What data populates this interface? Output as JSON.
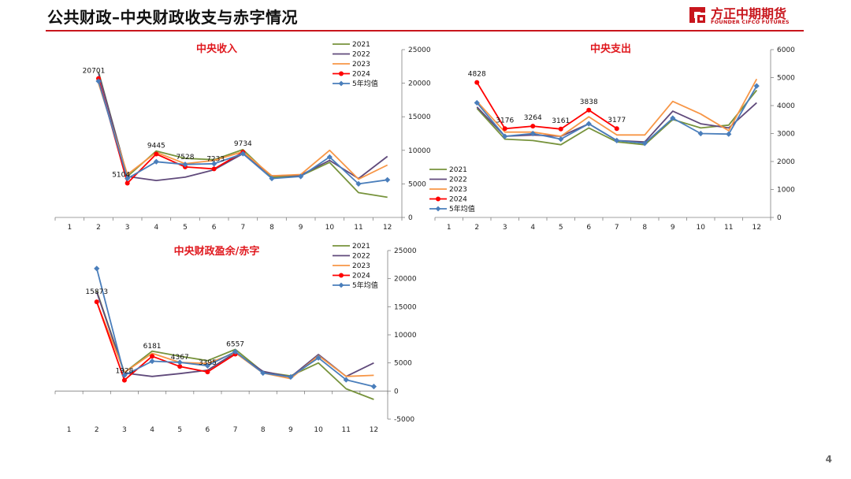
{
  "page": {
    "title": "公共财政–中央财政收支与赤字情况",
    "page_number": "4"
  },
  "logo": {
    "cn": "方正中期期货",
    "en": "FOUNDER CIFCO FUTURES",
    "brand_color": "#c8161d"
  },
  "chart_data": [
    {
      "type": "line",
      "title": "中央收入",
      "categories": [
        "1",
        "2",
        "3",
        "4",
        "5",
        "6",
        "7",
        "8",
        "9",
        "10",
        "11",
        "12"
      ],
      "ylim": [
        0,
        25000
      ],
      "yticks": [
        "0",
        "5000",
        "10000",
        "15000",
        "20000",
        "25000"
      ],
      "legend_position": "top-right",
      "series": [
        {
          "name": "2021",
          "color": "#77933c",
          "values": [
            null,
            21700,
            6100,
            9900,
            8800,
            8600,
            10100,
            6000,
            6200,
            8200,
            3700,
            3000
          ]
        },
        {
          "name": "2022",
          "color": "#604a7b",
          "values": [
            null,
            21500,
            6100,
            5500,
            6000,
            7100,
            9500,
            6200,
            6300,
            8500,
            5800,
            9100
          ]
        },
        {
          "name": "2023",
          "color": "#f79646",
          "values": [
            null,
            20000,
            6400,
            9700,
            8000,
            8500,
            9800,
            6200,
            6400,
            10000,
            5700,
            7800
          ]
        },
        {
          "name": "2024",
          "color": "#ff0000",
          "marker": "circle",
          "values": [
            null,
            20701,
            5104,
            9445,
            7528,
            7233,
            9734,
            null,
            null,
            null,
            null,
            null
          ]
        },
        {
          "name": "5年均值",
          "color": "#4a7ebb",
          "marker": "diamond",
          "values": [
            null,
            20300,
            5800,
            8300,
            7900,
            8000,
            9500,
            5800,
            6100,
            9000,
            5000,
            5600
          ]
        }
      ],
      "data_labels": [
        {
          "text": "20701",
          "series": "2024",
          "index": 1
        },
        {
          "text": "5104",
          "series": "2024",
          "index": 2
        },
        {
          "text": "9445",
          "series": "2024",
          "index": 3
        },
        {
          "text": "7528",
          "series": "2024",
          "index": 4
        },
        {
          "text": "7233",
          "series": "2024",
          "index": 5
        },
        {
          "text": "9734",
          "series": "2024",
          "index": 6
        }
      ]
    },
    {
      "type": "line",
      "title": "中央支出",
      "categories": [
        "1",
        "2",
        "3",
        "4",
        "5",
        "6",
        "7",
        "8",
        "9",
        "10",
        "11",
        "12"
      ],
      "ylim": [
        0,
        6000
      ],
      "yticks": [
        "0",
        "1000",
        "2000",
        "3000",
        "4000",
        "5000",
        "6000"
      ],
      "legend_position": "center-left",
      "series": [
        {
          "name": "2021",
          "color": "#77933c",
          "values": [
            null,
            3900,
            2800,
            2750,
            2600,
            3200,
            2700,
            2600,
            3500,
            3200,
            3300,
            4550
          ]
        },
        {
          "name": "2022",
          "color": "#604a7b",
          "values": [
            null,
            3950,
            2900,
            2950,
            2900,
            3350,
            2750,
            2700,
            3800,
            3350,
            3200,
            4100
          ]
        },
        {
          "name": "2023",
          "color": "#f79646",
          "values": [
            null,
            4150,
            3050,
            3050,
            2900,
            3600,
            2950,
            2950,
            4150,
            3700,
            3100,
            4950
          ]
        },
        {
          "name": "2024",
          "color": "#ff0000",
          "marker": "circle",
          "values": [
            null,
            4828,
            3176,
            3264,
            3161,
            3838,
            3177,
            null,
            null,
            null,
            null,
            null
          ]
        },
        {
          "name": "5年均值",
          "color": "#4a7ebb",
          "marker": "diamond",
          "values": [
            null,
            4100,
            2900,
            3000,
            2800,
            3350,
            2750,
            2650,
            3550,
            3000,
            2980,
            4700
          ]
        }
      ],
      "data_labels": [
        {
          "text": "4828",
          "series": "2024",
          "index": 1
        },
        {
          "text": "3176",
          "series": "2024",
          "index": 2
        },
        {
          "text": "3264",
          "series": "2024",
          "index": 3
        },
        {
          "text": "3161",
          "series": "2024",
          "index": 4
        },
        {
          "text": "3838",
          "series": "2024",
          "index": 5
        },
        {
          "text": "3177",
          "series": "2024",
          "index": 6
        }
      ]
    },
    {
      "type": "line",
      "title": "中央财政盈余/赤字",
      "categories": [
        "1",
        "2",
        "3",
        "4",
        "5",
        "6",
        "7",
        "8",
        "9",
        "10",
        "11",
        "12"
      ],
      "ylim": [
        -5000,
        25000
      ],
      "yticks": [
        "-5000",
        "0",
        "5000",
        "10000",
        "15000",
        "20000",
        "25000"
      ],
      "legend_position": "top-right",
      "series": [
        {
          "name": "2021",
          "color": "#77933c",
          "values": [
            null,
            17800,
            3300,
            7100,
            6200,
            5400,
            7400,
            3400,
            2700,
            5000,
            400,
            -1500
          ]
        },
        {
          "name": "2022",
          "color": "#604a7b",
          "values": [
            null,
            17600,
            3200,
            2600,
            3100,
            3700,
            6800,
            3500,
            2500,
            6500,
            2600,
            5000
          ]
        },
        {
          "name": "2023",
          "color": "#f79646",
          "values": [
            null,
            15800,
            3300,
            6700,
            5100,
            4900,
            6800,
            3200,
            2200,
            6300,
            2600,
            2800
          ]
        },
        {
          "name": "2024",
          "color": "#ff0000",
          "marker": "circle",
          "values": [
            null,
            15873,
            1928,
            6181,
            4367,
            3395,
            6557,
            null,
            null,
            null,
            null,
            null
          ]
        },
        {
          "name": "5年均值",
          "color": "#4a7ebb",
          "marker": "diamond",
          "values": [
            null,
            21800,
            2800,
            5300,
            5100,
            4500,
            7000,
            3200,
            2500,
            5900,
            2000,
            800
          ]
        }
      ],
      "data_labels": [
        {
          "text": "15873",
          "series": "2024",
          "index": 1
        },
        {
          "text": "1928",
          "series": "2024",
          "index": 2
        },
        {
          "text": "6181",
          "series": "2024",
          "index": 3
        },
        {
          "text": "4367",
          "series": "2024",
          "index": 4
        },
        {
          "text": "3395",
          "series": "2024",
          "index": 5
        },
        {
          "text": "6557",
          "series": "2024",
          "index": 6
        }
      ]
    }
  ]
}
